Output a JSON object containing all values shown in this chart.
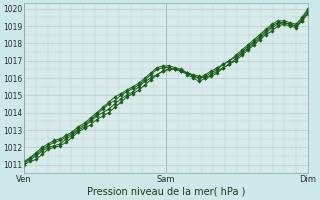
{
  "title": "",
  "xlabel": "Pression niveau de la mer( hPa )",
  "ylabel": "",
  "bg_color": "#cce8e8",
  "plot_bg_color": "#daeaea",
  "grid_color": "#a8cece",
  "line_color": "#1a5e1a",
  "marker_color": "#1a5e1a",
  "xlim": [
    0,
    48
  ],
  "ylim": [
    1010.5,
    1020.3
  ],
  "yticks": [
    1011,
    1012,
    1013,
    1014,
    1015,
    1016,
    1017,
    1018,
    1019,
    1020
  ],
  "xtick_positions": [
    0,
    24,
    48
  ],
  "xtick_labels": [
    "Ven",
    "Sam",
    "Dim"
  ],
  "series": [
    [
      1011.1,
      1011.3,
      1011.5,
      1011.8,
      1012.0,
      1012.1,
      1012.2,
      1012.5,
      1012.7,
      1013.0,
      1013.2,
      1013.5,
      1013.8,
      1014.0,
      1014.2,
      1014.5,
      1014.8,
      1015.0,
      1015.2,
      1015.5,
      1015.8,
      1016.0,
      1016.2,
      1016.4,
      1016.5,
      1016.5,
      1016.4,
      1016.3,
      1016.2,
      1016.1,
      1016.0,
      1016.2,
      1016.4,
      1016.6,
      1016.8,
      1017.0,
      1017.3,
      1017.6,
      1017.9,
      1018.2,
      1018.5,
      1018.7,
      1019.0,
      1019.1,
      1019.0,
      1018.9,
      1019.3,
      1019.8
    ],
    [
      1011.2,
      1011.4,
      1011.6,
      1011.9,
      1012.1,
      1012.3,
      1012.4,
      1012.6,
      1012.8,
      1013.1,
      1013.3,
      1013.6,
      1013.9,
      1014.2,
      1014.5,
      1014.7,
      1015.0,
      1015.2,
      1015.4,
      1015.6,
      1015.9,
      1016.2,
      1016.5,
      1016.6,
      1016.6,
      1016.5,
      1016.4,
      1016.3,
      1016.1,
      1016.0,
      1016.2,
      1016.4,
      1016.6,
      1016.8,
      1017.0,
      1017.2,
      1017.5,
      1017.8,
      1018.1,
      1018.4,
      1018.7,
      1019.0,
      1019.2,
      1019.2,
      1019.1,
      1019.0,
      1019.4,
      1019.9
    ],
    [
      1011.0,
      1011.2,
      1011.3,
      1011.6,
      1011.9,
      1012.0,
      1012.1,
      1012.3,
      1012.6,
      1012.9,
      1013.1,
      1013.3,
      1013.6,
      1013.8,
      1014.0,
      1014.3,
      1014.6,
      1014.9,
      1015.1,
      1015.3,
      1015.6,
      1015.9,
      1016.2,
      1016.4,
      1016.5,
      1016.5,
      1016.4,
      1016.2,
      1016.0,
      1015.8,
      1016.0,
      1016.1,
      1016.3,
      1016.6,
      1016.8,
      1017.1,
      1017.4,
      1017.7,
      1018.0,
      1018.3,
      1018.6,
      1018.9,
      1019.1,
      1019.2,
      1019.1,
      1019.0,
      1019.3,
      1019.7
    ],
    [
      1011.1,
      1011.4,
      1011.7,
      1012.0,
      1012.2,
      1012.4,
      1012.5,
      1012.7,
      1012.9,
      1013.2,
      1013.4,
      1013.7,
      1014.0,
      1014.3,
      1014.6,
      1014.9,
      1015.1,
      1015.3,
      1015.5,
      1015.7,
      1016.0,
      1016.3,
      1016.6,
      1016.7,
      1016.7,
      1016.6,
      1016.5,
      1016.3,
      1016.1,
      1016.0,
      1016.1,
      1016.3,
      1016.5,
      1016.8,
      1017.0,
      1017.3,
      1017.6,
      1017.9,
      1018.2,
      1018.5,
      1018.8,
      1019.1,
      1019.3,
      1019.3,
      1019.2,
      1019.1,
      1019.5,
      1020.0
    ]
  ]
}
